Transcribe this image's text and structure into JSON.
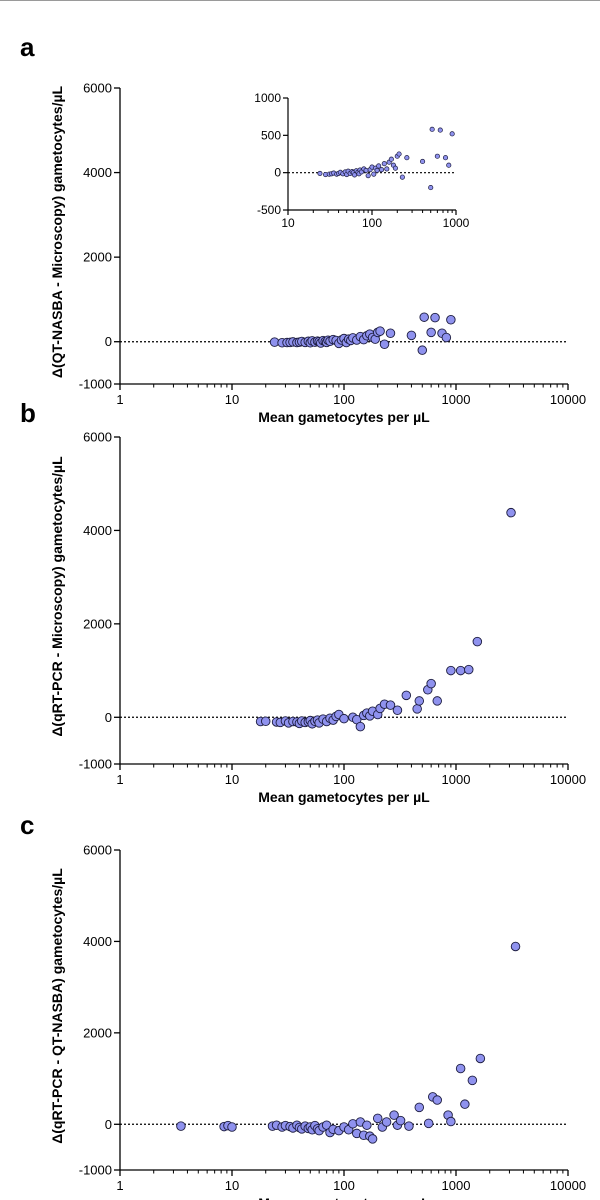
{
  "chart_data": [
    {
      "type": "scatter",
      "panel": "a",
      "xlabel": "Mean gametocytes per µL",
      "ylabel": "Δ(QT-NASBA - Microscopy) gametocytes/µL",
      "xscale": "log",
      "xlim": [
        1,
        10000
      ],
      "ylim": [
        -1000,
        6000
      ],
      "x_ticks": [
        "1",
        "10",
        "100",
        "1000",
        "10000"
      ],
      "y_ticks": [
        "-1000",
        "0",
        "2000",
        "4000",
        "6000"
      ],
      "reference_line": 0,
      "marker_color": "#8f92ee",
      "points": [
        [
          24,
          -10
        ],
        [
          28,
          -25
        ],
        [
          31,
          -20
        ],
        [
          33,
          -15
        ],
        [
          35,
          -5
        ],
        [
          38,
          -20
        ],
        [
          40,
          -10
        ],
        [
          42,
          5
        ],
        [
          45,
          -15
        ],
        [
          48,
          10
        ],
        [
          50,
          -25
        ],
        [
          52,
          20
        ],
        [
          55,
          -10
        ],
        [
          58,
          15
        ],
        [
          60,
          0
        ],
        [
          62,
          -30
        ],
        [
          65,
          25
        ],
        [
          68,
          5
        ],
        [
          70,
          -15
        ],
        [
          72,
          35
        ],
        [
          75,
          10
        ],
        [
          80,
          50
        ],
        [
          85,
          30
        ],
        [
          90,
          -40
        ],
        [
          95,
          40
        ],
        [
          100,
          75
        ],
        [
          105,
          -20
        ],
        [
          110,
          60
        ],
        [
          115,
          30
        ],
        [
          120,
          90
        ],
        [
          130,
          40
        ],
        [
          140,
          120
        ],
        [
          150,
          50
        ],
        [
          160,
          140
        ],
        [
          170,
          180
        ],
        [
          180,
          100
        ],
        [
          190,
          60
        ],
        [
          200,
          220
        ],
        [
          210,
          250
        ],
        [
          230,
          -60
        ],
        [
          260,
          200
        ],
        [
          400,
          150
        ],
        [
          500,
          -200
        ],
        [
          520,
          580
        ],
        [
          600,
          220
        ],
        [
          650,
          570
        ],
        [
          750,
          200
        ],
        [
          820,
          100
        ],
        [
          900,
          520
        ]
      ],
      "inset": {
        "xscale": "log",
        "xlim": [
          10,
          1000
        ],
        "ylim": [
          -500,
          1000
        ],
        "x_ticks": [
          "10",
          "100",
          "1000"
        ],
        "y_ticks": [
          "1000",
          "500",
          "0",
          "-500"
        ]
      }
    },
    {
      "type": "scatter",
      "panel": "b",
      "xlabel": "Mean gametocytes per µL",
      "ylabel": "Δ(qRT-PCR - Microscopy) gametocytes/µL",
      "xscale": "log",
      "xlim": [
        1,
        10000
      ],
      "ylim": [
        -1000,
        6000
      ],
      "x_ticks": [
        "1",
        "10",
        "100",
        "1000",
        "10000"
      ],
      "y_ticks": [
        "-1000",
        "0",
        "2000",
        "4000",
        "6000"
      ],
      "reference_line": 0,
      "marker_color": "#8f92ee",
      "points": [
        [
          18,
          -90
        ],
        [
          20,
          -85
        ],
        [
          25,
          -100
        ],
        [
          27,
          -110
        ],
        [
          30,
          -80
        ],
        [
          32,
          -120
        ],
        [
          35,
          -90
        ],
        [
          38,
          -100
        ],
        [
          40,
          -130
        ],
        [
          42,
          -80
        ],
        [
          45,
          -110
        ],
        [
          48,
          -95
        ],
        [
          50,
          -70
        ],
        [
          52,
          -140
        ],
        [
          55,
          -85
        ],
        [
          58,
          -60
        ],
        [
          60,
          -120
        ],
        [
          65,
          -40
        ],
        [
          70,
          -90
        ],
        [
          75,
          -20
        ],
        [
          80,
          -60
        ],
        [
          85,
          20
        ],
        [
          90,
          60
        ],
        [
          100,
          -30
        ],
        [
          120,
          0
        ],
        [
          130,
          -50
        ],
        [
          140,
          -200
        ],
        [
          150,
          40
        ],
        [
          160,
          90
        ],
        [
          170,
          30
        ],
        [
          180,
          130
        ],
        [
          200,
          60
        ],
        [
          210,
          190
        ],
        [
          230,
          280
        ],
        [
          260,
          260
        ],
        [
          300,
          150
        ],
        [
          360,
          470
        ],
        [
          450,
          180
        ],
        [
          470,
          350
        ],
        [
          560,
          590
        ],
        [
          600,
          720
        ],
        [
          680,
          350
        ],
        [
          900,
          1000
        ],
        [
          1100,
          1000
        ],
        [
          1300,
          1020
        ],
        [
          1550,
          1620
        ],
        [
          3100,
          4380
        ]
      ]
    },
    {
      "type": "scatter",
      "panel": "c",
      "xlabel": "Mean gametocytes per µL",
      "ylabel": "Δ(qRT-PCR - QT-NASBA) gametocytes/µL",
      "xscale": "log",
      "xlim": [
        1,
        10000
      ],
      "ylim": [
        -1000,
        6000
      ],
      "x_ticks": [
        "1",
        "10",
        "100",
        "1000",
        "10000"
      ],
      "y_ticks": [
        "-1000",
        "0",
        "2000",
        "4000",
        "6000"
      ],
      "reference_line": 0,
      "marker_color": "#8f92ee",
      "points": [
        [
          3.5,
          -40
        ],
        [
          8.5,
          -50
        ],
        [
          9.2,
          -30
        ],
        [
          10,
          -60
        ],
        [
          23,
          -40
        ],
        [
          25,
          -20
        ],
        [
          28,
          -60
        ],
        [
          30,
          -30
        ],
        [
          33,
          -50
        ],
        [
          35,
          -80
        ],
        [
          38,
          -20
        ],
        [
          40,
          -70
        ],
        [
          42,
          -100
        ],
        [
          45,
          -40
        ],
        [
          48,
          -90
        ],
        [
          50,
          -60
        ],
        [
          52,
          -120
        ],
        [
          55,
          -30
        ],
        [
          58,
          -100
        ],
        [
          60,
          -140
        ],
        [
          65,
          -60
        ],
        [
          70,
          -20
        ],
        [
          75,
          -180
        ],
        [
          80,
          -110
        ],
        [
          90,
          -140
        ],
        [
          100,
          -60
        ],
        [
          110,
          -120
        ],
        [
          120,
          10
        ],
        [
          130,
          -200
        ],
        [
          140,
          50
        ],
        [
          150,
          -240
        ],
        [
          160,
          -20
        ],
        [
          170,
          -260
        ],
        [
          180,
          -320
        ],
        [
          200,
          130
        ],
        [
          220,
          -60
        ],
        [
          240,
          50
        ],
        [
          280,
          200
        ],
        [
          300,
          -20
        ],
        [
          320,
          80
        ],
        [
          380,
          -40
        ],
        [
          470,
          370
        ],
        [
          570,
          20
        ],
        [
          620,
          600
        ],
        [
          680,
          530
        ],
        [
          850,
          200
        ],
        [
          900,
          60
        ],
        [
          1100,
          1220
        ],
        [
          1200,
          440
        ],
        [
          1400,
          960
        ],
        [
          1650,
          1440
        ],
        [
          3400,
          3890
        ]
      ]
    }
  ]
}
